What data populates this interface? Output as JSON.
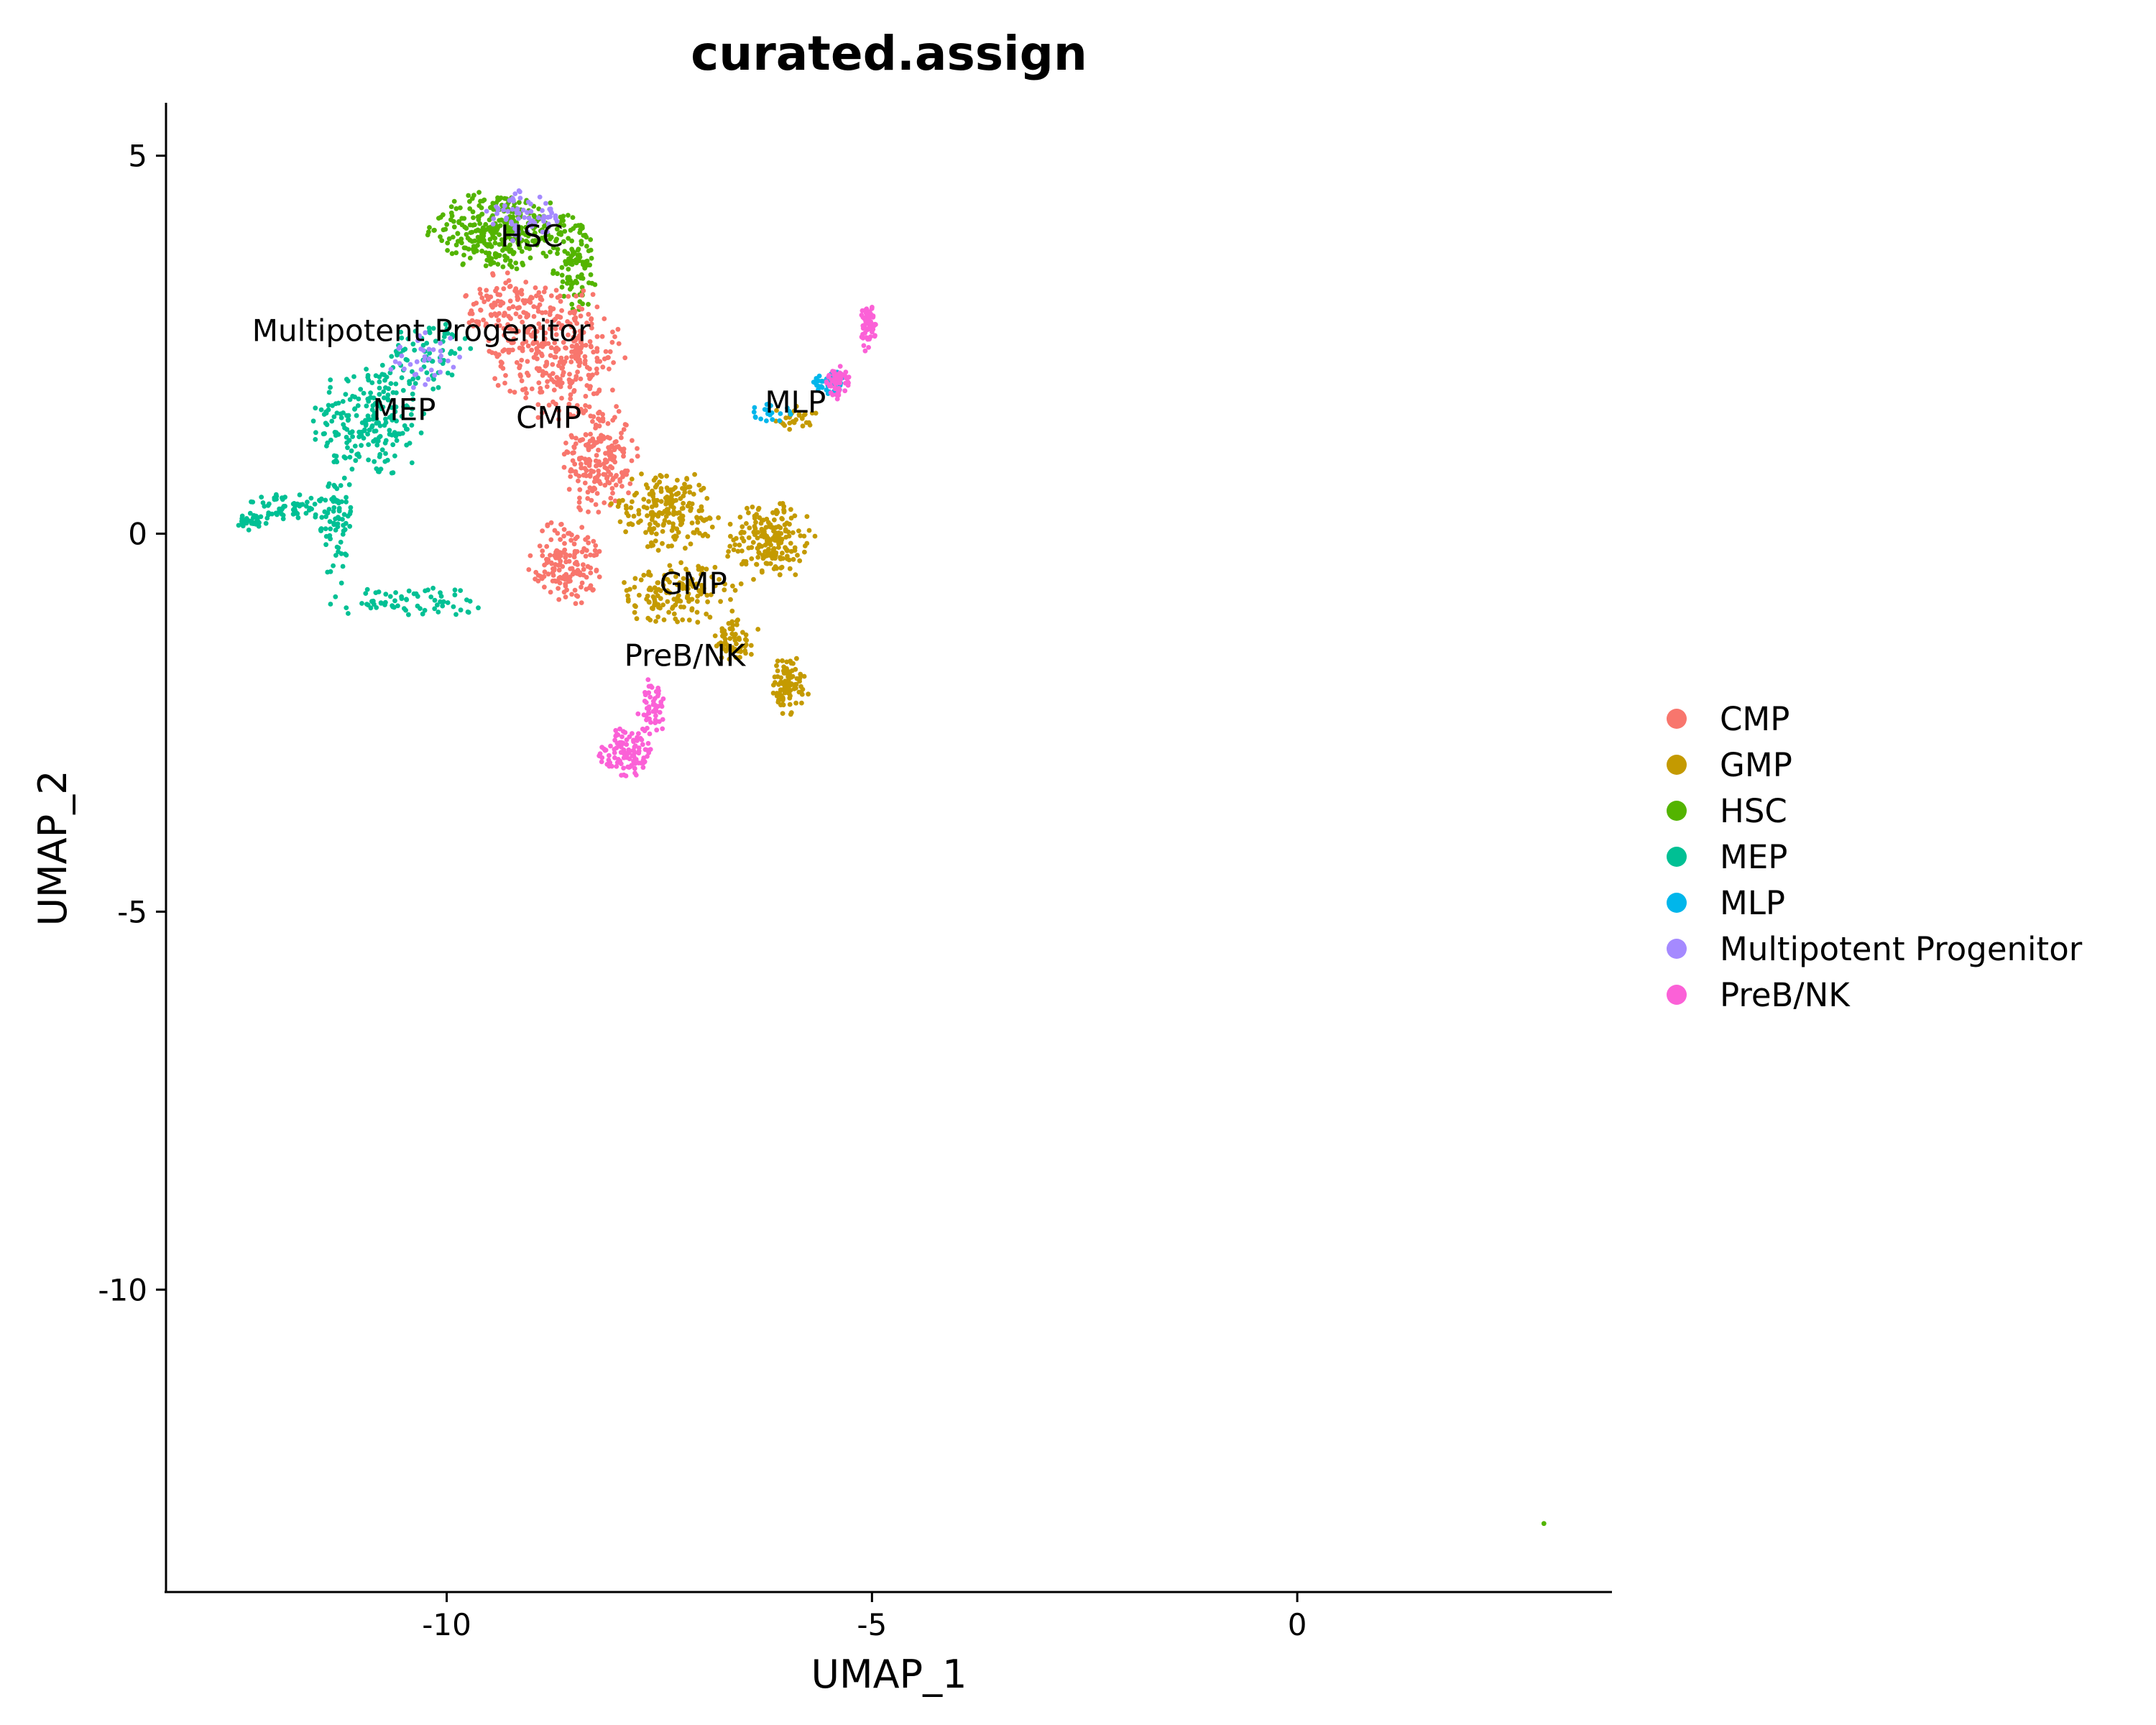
{
  "chart_data": {
    "type": "scatter",
    "title": "curated.assign",
    "xlabel": "UMAP_1",
    "ylabel": "UMAP_2",
    "xlim": [
      -13.3,
      3.7
    ],
    "ylim": [
      -14.0,
      5.7
    ],
    "xticks": [
      {
        "value": -10,
        "label": "-10"
      },
      {
        "value": -5,
        "label": "-5"
      },
      {
        "value": 0,
        "label": "0"
      }
    ],
    "yticks": [
      {
        "value": 5,
        "label": "5"
      },
      {
        "value": 0,
        "label": "0"
      },
      {
        "value": -5,
        "label": "-5"
      },
      {
        "value": -10,
        "label": "-10"
      }
    ],
    "grid": false,
    "legend_position": "right",
    "legend": [
      {
        "label": "CMP",
        "color": "#F8766D"
      },
      {
        "label": "GMP",
        "color": "#C49A00"
      },
      {
        "label": "HSC",
        "color": "#53B400"
      },
      {
        "label": "MEP",
        "color": "#00C094"
      },
      {
        "label": "MLP",
        "color": "#00B6EB"
      },
      {
        "label": "Multipotent Progenitor",
        "color": "#A58AFF"
      },
      {
        "label": "PreB/NK",
        "color": "#FB61D7"
      }
    ],
    "cluster_labels": [
      {
        "text": "HSC",
        "x": -9.0,
        "y": 3.8
      },
      {
        "text": "Multipotent Progenitor",
        "x": -10.3,
        "y": 2.55
      },
      {
        "text": "MEP",
        "x": -10.5,
        "y": 1.5
      },
      {
        "text": "CMP",
        "x": -8.8,
        "y": 1.4
      },
      {
        "text": "MLP",
        "x": -5.9,
        "y": 1.6
      },
      {
        "text": "GMP",
        "x": -7.1,
        "y": -0.8
      },
      {
        "text": "PreB/NK",
        "x": -7.2,
        "y": -1.75
      }
    ],
    "clusters": [
      {
        "label": "MEP",
        "color": "#00C094",
        "n": 520,
        "regions": [
          {
            "cx": -10.9,
            "cy": 1.5,
            "rx": 0.7,
            "ry": 0.8,
            "w": 3
          },
          {
            "cx": -11.3,
            "cy": 0.2,
            "rx": 0.2,
            "ry": 0.9,
            "w": 1
          },
          {
            "cx": -10.5,
            "cy": -0.9,
            "rx": 1.0,
            "ry": 0.22,
            "w": 1
          },
          {
            "cx": -11.8,
            "cy": 0.35,
            "rx": 0.6,
            "ry": 0.18,
            "w": 1
          },
          {
            "cx": -12.3,
            "cy": 0.15,
            "rx": 0.2,
            "ry": 0.12,
            "w": 0.4
          },
          {
            "cx": -10.2,
            "cy": 2.4,
            "rx": 0.5,
            "ry": 0.5,
            "w": 1
          }
        ]
      },
      {
        "label": "HSC",
        "color": "#53B400",
        "n": 420,
        "regions": [
          {
            "cx": -9.4,
            "cy": 4.0,
            "rx": 0.85,
            "ry": 0.55,
            "w": 3
          },
          {
            "cx": -8.5,
            "cy": 3.6,
            "rx": 0.3,
            "ry": 0.7,
            "w": 1
          },
          {
            "cx": 2.9,
            "cy": -13.1,
            "rx": 0.01,
            "ry": 0.01,
            "w": 0.004
          }
        ]
      },
      {
        "label": "CMP",
        "color": "#F8766D",
        "n": 780,
        "regions": [
          {
            "cx": -8.7,
            "cy": 2.4,
            "rx": 0.8,
            "ry": 0.9,
            "w": 3
          },
          {
            "cx": -8.2,
            "cy": 1.0,
            "rx": 0.45,
            "ry": 0.8,
            "w": 2
          },
          {
            "cx": -8.6,
            "cy": -0.4,
            "rx": 0.45,
            "ry": 0.6,
            "w": 1.5
          },
          {
            "cx": -9.3,
            "cy": 3.0,
            "rx": 0.5,
            "ry": 0.5,
            "w": 1
          }
        ]
      },
      {
        "label": "GMP",
        "color": "#C49A00",
        "n": 700,
        "regions": [
          {
            "cx": -7.4,
            "cy": 0.3,
            "rx": 0.7,
            "ry": 0.55,
            "w": 2
          },
          {
            "cx": -6.2,
            "cy": -0.1,
            "rx": 0.55,
            "ry": 0.55,
            "w": 2
          },
          {
            "cx": -7.3,
            "cy": -0.8,
            "rx": 0.8,
            "ry": 0.45,
            "w": 1.5
          },
          {
            "cx": -6.0,
            "cy": -2.0,
            "rx": 0.3,
            "ry": 0.4,
            "w": 1
          },
          {
            "cx": -6.6,
            "cy": -1.4,
            "rx": 0.3,
            "ry": 0.3,
            "w": 0.6
          },
          {
            "cx": -5.9,
            "cy": 1.5,
            "rx": 0.3,
            "ry": 0.2,
            "w": 0.3
          }
        ]
      },
      {
        "label": "MLP",
        "color": "#00B6EB",
        "n": 70,
        "regions": [
          {
            "cx": -5.5,
            "cy": 2.0,
            "rx": 0.25,
            "ry": 0.15,
            "w": 2
          },
          {
            "cx": -6.2,
            "cy": 1.6,
            "rx": 0.3,
            "ry": 0.12,
            "w": 1
          }
        ]
      },
      {
        "label": "Multipotent Progenitor",
        "color": "#A58AFF",
        "n": 110,
        "regions": [
          {
            "cx": -9.1,
            "cy": 4.2,
            "rx": 0.5,
            "ry": 0.35,
            "w": 2
          },
          {
            "cx": -10.3,
            "cy": 2.3,
            "rx": 0.5,
            "ry": 0.4,
            "w": 1
          }
        ]
      },
      {
        "label": "PreB/NK",
        "color": "#FB61D7",
        "n": 260,
        "regions": [
          {
            "cx": -7.9,
            "cy": -2.9,
            "rx": 0.35,
            "ry": 0.35,
            "w": 2
          },
          {
            "cx": -7.6,
            "cy": -2.3,
            "rx": 0.2,
            "ry": 0.4,
            "w": 1
          },
          {
            "cx": -5.4,
            "cy": 2.0,
            "rx": 0.15,
            "ry": 0.25,
            "w": 1
          },
          {
            "cx": -5.05,
            "cy": 2.75,
            "rx": 0.1,
            "ry": 0.35,
            "w": 1
          }
        ]
      }
    ]
  }
}
